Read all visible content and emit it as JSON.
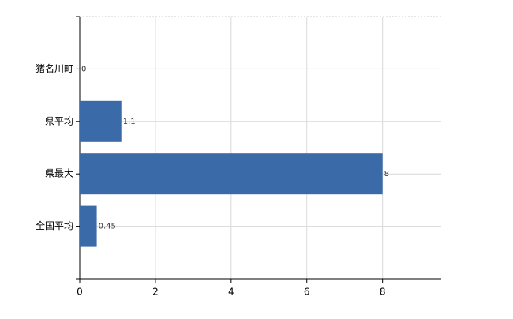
{
  "chart_data": {
    "type": "bar",
    "orientation": "horizontal",
    "categories": [
      "猪名川町",
      "県平均",
      "県最大",
      "全国平均"
    ],
    "values": [
      0,
      1.1,
      8,
      0.45
    ],
    "color": "#3a6aa8",
    "xlim": [
      0,
      9.55
    ],
    "xticks": [
      0,
      2,
      4,
      6,
      8
    ],
    "grid": true
  }
}
